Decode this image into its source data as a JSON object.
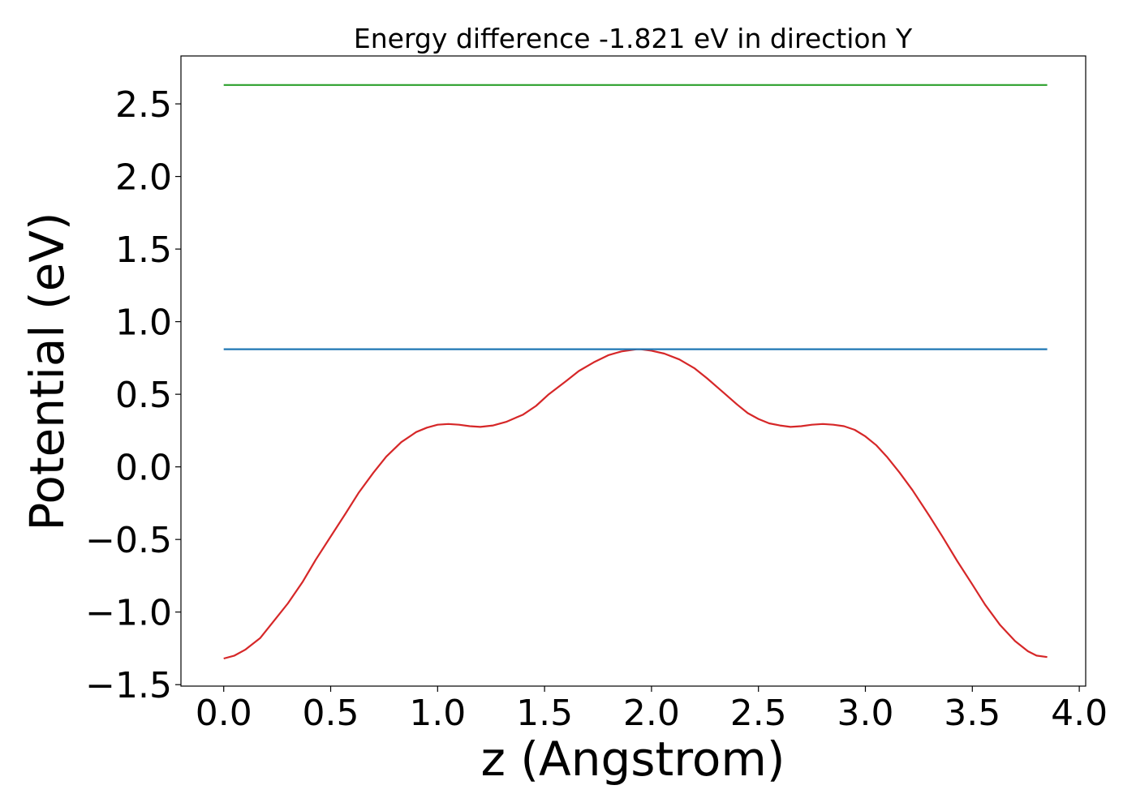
{
  "chart_data": {
    "type": "line",
    "title": "Energy difference -1.821 eV in direction Y",
    "xlabel": "z (Angstrom)",
    "ylabel": "Potential (eV)",
    "xlim": [
      -0.2,
      4.03
    ],
    "ylim": [
      -1.51,
      2.83
    ],
    "grid": false,
    "x_ticks": [
      0.0,
      0.5,
      1.0,
      1.5,
      2.0,
      2.5,
      3.0,
      3.5,
      4.0
    ],
    "x_tick_labels": [
      "0.0",
      "0.5",
      "1.0",
      "1.5",
      "2.0",
      "2.5",
      "3.0",
      "3.5",
      "4.0"
    ],
    "y_ticks": [
      -1.5,
      -1.0,
      -0.5,
      0.0,
      0.5,
      1.0,
      1.5,
      2.0,
      2.5
    ],
    "y_tick_labels": [
      "−1.5",
      "−1.0",
      "−0.5",
      "0.0",
      "0.5",
      "1.0",
      "1.5",
      "2.0",
      "2.5"
    ],
    "series": [
      {
        "color": "#d62728",
        "x": [
          0.0,
          0.05,
          0.1,
          0.17,
          0.23,
          0.3,
          0.37,
          0.43,
          0.5,
          0.57,
          0.63,
          0.7,
          0.76,
          0.83,
          0.9,
          0.95,
          1.0,
          1.05,
          1.1,
          1.15,
          1.2,
          1.26,
          1.32,
          1.4,
          1.46,
          1.52,
          1.6,
          1.66,
          1.73,
          1.8,
          1.86,
          1.93,
          1.95,
          2.0,
          2.06,
          2.13,
          2.2,
          2.26,
          2.33,
          2.4,
          2.45,
          2.5,
          2.55,
          2.6,
          2.65,
          2.7,
          2.75,
          2.8,
          2.85,
          2.9,
          2.95,
          3.0,
          3.05,
          3.1,
          3.16,
          3.22,
          3.3,
          3.36,
          3.43,
          3.5,
          3.56,
          3.63,
          3.7,
          3.76,
          3.8,
          3.85
        ],
        "y": [
          -1.32,
          -1.3,
          -1.26,
          -1.18,
          -1.07,
          -0.94,
          -0.79,
          -0.64,
          -0.48,
          -0.32,
          -0.18,
          -0.04,
          0.07,
          0.17,
          0.24,
          0.27,
          0.29,
          0.295,
          0.29,
          0.28,
          0.275,
          0.285,
          0.31,
          0.36,
          0.42,
          0.5,
          0.59,
          0.66,
          0.72,
          0.77,
          0.795,
          0.81,
          0.81,
          0.8,
          0.78,
          0.74,
          0.68,
          0.61,
          0.52,
          0.43,
          0.37,
          0.33,
          0.3,
          0.285,
          0.275,
          0.28,
          0.29,
          0.295,
          0.29,
          0.28,
          0.255,
          0.21,
          0.15,
          0.07,
          -0.04,
          -0.16,
          -0.34,
          -0.48,
          -0.65,
          -0.81,
          -0.95,
          -1.09,
          -1.2,
          -1.27,
          -1.3,
          -1.31
        ]
      },
      {
        "color": "#1f77b4",
        "x": [
          0.0,
          3.85
        ],
        "y": [
          0.81,
          0.81
        ]
      },
      {
        "color": "#2ca02c",
        "x": [
          0.0,
          3.85
        ],
        "y": [
          2.63,
          2.63
        ]
      }
    ]
  }
}
